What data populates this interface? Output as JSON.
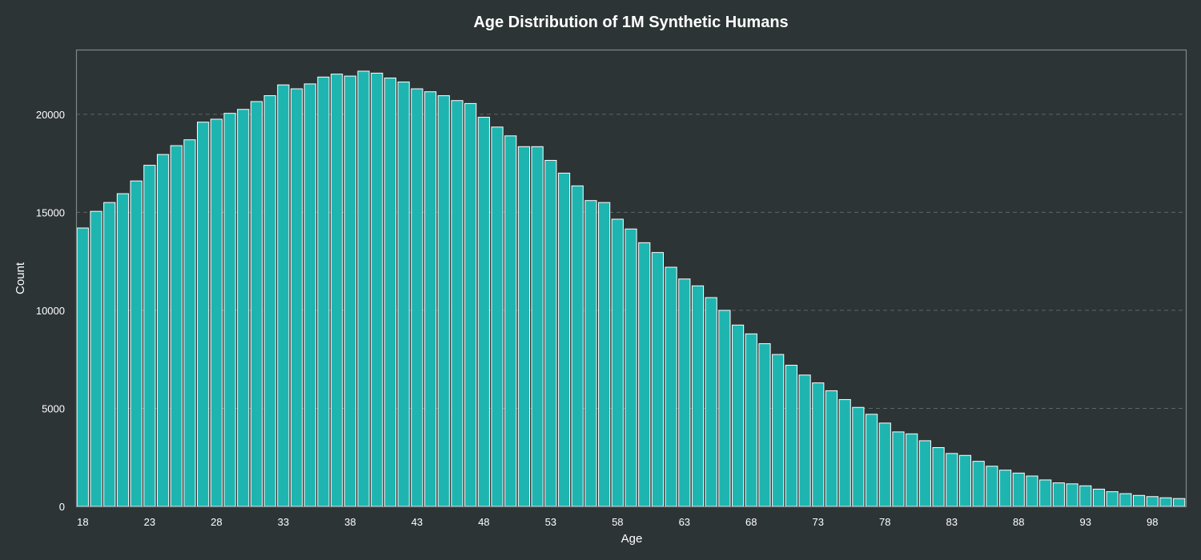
{
  "chart_data": {
    "type": "bar",
    "title": "Age Distribution of 1M Synthetic Humans",
    "xlabel": "Age",
    "ylabel": "Count",
    "x_start": 18,
    "x_end": 100,
    "xticks": [
      "18",
      "23",
      "28",
      "33",
      "38",
      "43",
      "48",
      "53",
      "58",
      "63",
      "68",
      "73",
      "78",
      "83",
      "88",
      "93",
      "98"
    ],
    "yticks": [
      "0",
      "5000",
      "10000",
      "15000",
      "20000"
    ],
    "ylim": [
      0,
      23300
    ],
    "grid": "horizontal dashed",
    "colors": {
      "background": "#2d3436",
      "bar": "#1eb5b0",
      "bar_edge": "#ffffff",
      "grid": "#5f6668",
      "frame": "#80888a",
      "text": "#ffffff"
    },
    "values": [
      14200,
      15050,
      15500,
      15950,
      16600,
      17400,
      17950,
      18400,
      18700,
      19600,
      19750,
      20050,
      20250,
      20650,
      20950,
      21500,
      21300,
      21550,
      21900,
      22050,
      21950,
      22200,
      22100,
      21850,
      21650,
      21300,
      21150,
      20950,
      20700,
      20550,
      19850,
      19350,
      18900,
      18350,
      18350,
      17650,
      17000,
      16350,
      15600,
      15500,
      14650,
      14150,
      13450,
      12950,
      12200,
      11600,
      11250,
      10650,
      10000,
      9250,
      8800,
      8300,
      7750,
      7200,
      6700,
      6300,
      5900,
      5450,
      5050,
      4700,
      4250,
      3800,
      3700,
      3350,
      3000,
      2700,
      2600,
      2300,
      2050,
      1850,
      1700,
      1550,
      1350,
      1200,
      1150,
      1050,
      880,
      750,
      650,
      560,
      500,
      440,
      400
    ]
  }
}
